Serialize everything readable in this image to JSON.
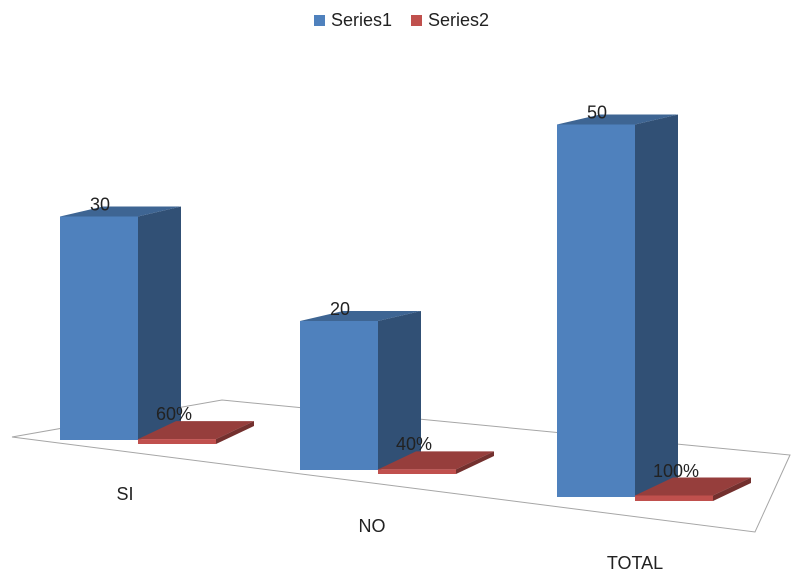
{
  "chart_data": {
    "type": "bar",
    "style": "3d-column",
    "categories": [
      "SI",
      "NO",
      "TOTAL"
    ],
    "series": [
      {
        "name": "Series1",
        "values": [
          30,
          20,
          50
        ],
        "labels": [
          "30",
          "20",
          "50"
        ],
        "color": "#4f81bd"
      },
      {
        "name": "Series2",
        "values": [
          0.6,
          0.4,
          1.0
        ],
        "labels": [
          "60%",
          "40%",
          "100%"
        ],
        "color": "#c0504d"
      }
    ],
    "legend": "top-center",
    "grid": false
  },
  "legend": {
    "items": [
      {
        "label": "Series1",
        "color": "#4f81bd"
      },
      {
        "label": "Series2",
        "color": "#c0504d"
      }
    ]
  }
}
